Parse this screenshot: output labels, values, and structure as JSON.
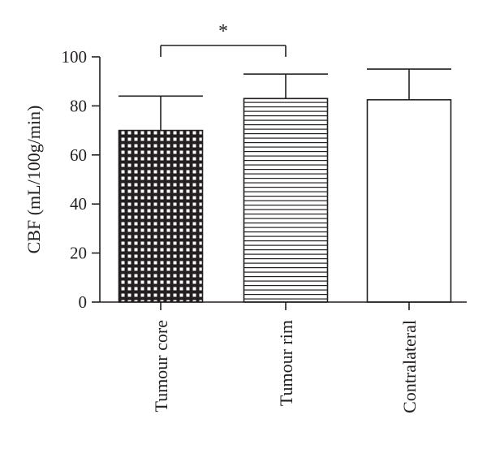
{
  "chart_data": {
    "type": "bar",
    "categories": [
      "Tumour core",
      "Tumour rim",
      "Contralateral"
    ],
    "values": [
      70,
      83,
      82.5
    ],
    "errors": [
      14,
      10,
      12.5
    ],
    "patterns": [
      "checker",
      "hlines",
      "none"
    ],
    "ylabel": "CBF (mL/100g/min)",
    "ylim": [
      0,
      100
    ],
    "yticks": [
      "0",
      "20",
      "40",
      "60",
      "80",
      "100"
    ],
    "significance": {
      "between": [
        0,
        1
      ],
      "label": "*"
    }
  }
}
